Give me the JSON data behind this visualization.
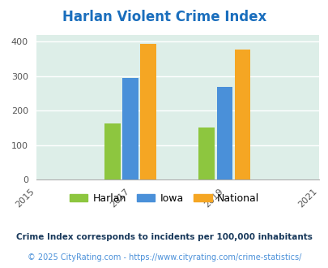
{
  "title": "Harlan Violent Crime Index",
  "title_color": "#1a6ebd",
  "years": [
    2017,
    2019
  ],
  "harlan": [
    163,
    150
  ],
  "iowa": [
    294,
    268
  ],
  "national": [
    394,
    378
  ],
  "harlan_color": "#8dc63f",
  "iowa_color": "#4a90d9",
  "national_color": "#f5a623",
  "xlim": [
    2015,
    2021
  ],
  "ylim": [
    0,
    420
  ],
  "yticks": [
    0,
    100,
    200,
    300,
    400
  ],
  "xticks": [
    2015,
    2017,
    2019,
    2021
  ],
  "background_color": "#ddeee8",
  "fig_background": "#ffffff",
  "legend_labels": [
    "Harlan",
    "Iowa",
    "National"
  ],
  "footnote1": "Crime Index corresponds to incidents per 100,000 inhabitants",
  "footnote2": "© 2025 CityRating.com - https://www.cityrating.com/crime-statistics/",
  "footnote1_color": "#1a3a5c",
  "footnote2_color": "#4a90d9",
  "bar_width": 0.38
}
